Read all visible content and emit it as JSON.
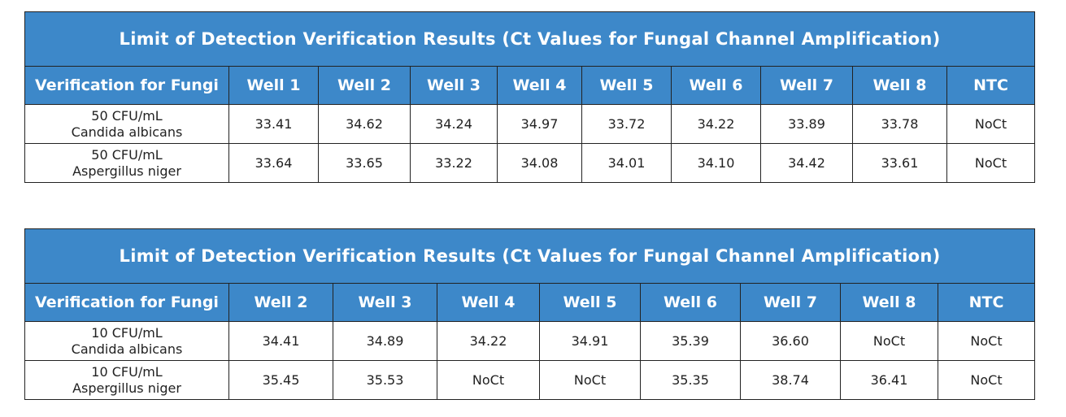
{
  "tables": [
    {
      "title": "Limit of Detection Verification Results (Ct Values for Fungal Channel Amplification)",
      "headers": [
        "Verification for Fungi",
        "Well 1",
        "Well 2",
        "Well 3",
        "Well 4",
        "Well 5",
        "Well 6",
        "Well 7",
        "Well 8",
        "NTC"
      ],
      "rows": [
        {
          "label_line1": "50 CFU/mL",
          "label_line2": "Candida albicans",
          "values": [
            "33.41",
            "34.62",
            "34.24",
            "34.97",
            "33.72",
            "34.22",
            "33.89",
            "33.78",
            "NoCt"
          ]
        },
        {
          "label_line1": "50 CFU/mL",
          "label_line2": "Aspergillus niger",
          "values": [
            "33.64",
            "33.65",
            "33.22",
            "34.08",
            "34.01",
            "34.10",
            "34.42",
            "33.61",
            "NoCt"
          ]
        }
      ]
    },
    {
      "title": "Limit of Detection Verification Results (Ct Values for Fungal Channel Amplification)",
      "headers": [
        "Verification for Fungi",
        "Well 2",
        "Well 3",
        "Well 4",
        "Well 5",
        "Well 6",
        "Well 7",
        "Well 8",
        "NTC"
      ],
      "rows": [
        {
          "label_line1": "10 CFU/mL",
          "label_line2": "Candida albicans",
          "values": [
            "34.41",
            "34.89",
            "34.22",
            "34.91",
            "35.39",
            "36.60",
            "NoCt",
            "NoCt"
          ]
        },
        {
          "label_line1": "10 CFU/mL",
          "label_line2": "Aspergillus niger",
          "values": [
            "35.45",
            "35.53",
            "NoCt",
            "NoCt",
            "35.35",
            "38.74",
            "36.41",
            "NoCt"
          ]
        }
      ]
    }
  ]
}
